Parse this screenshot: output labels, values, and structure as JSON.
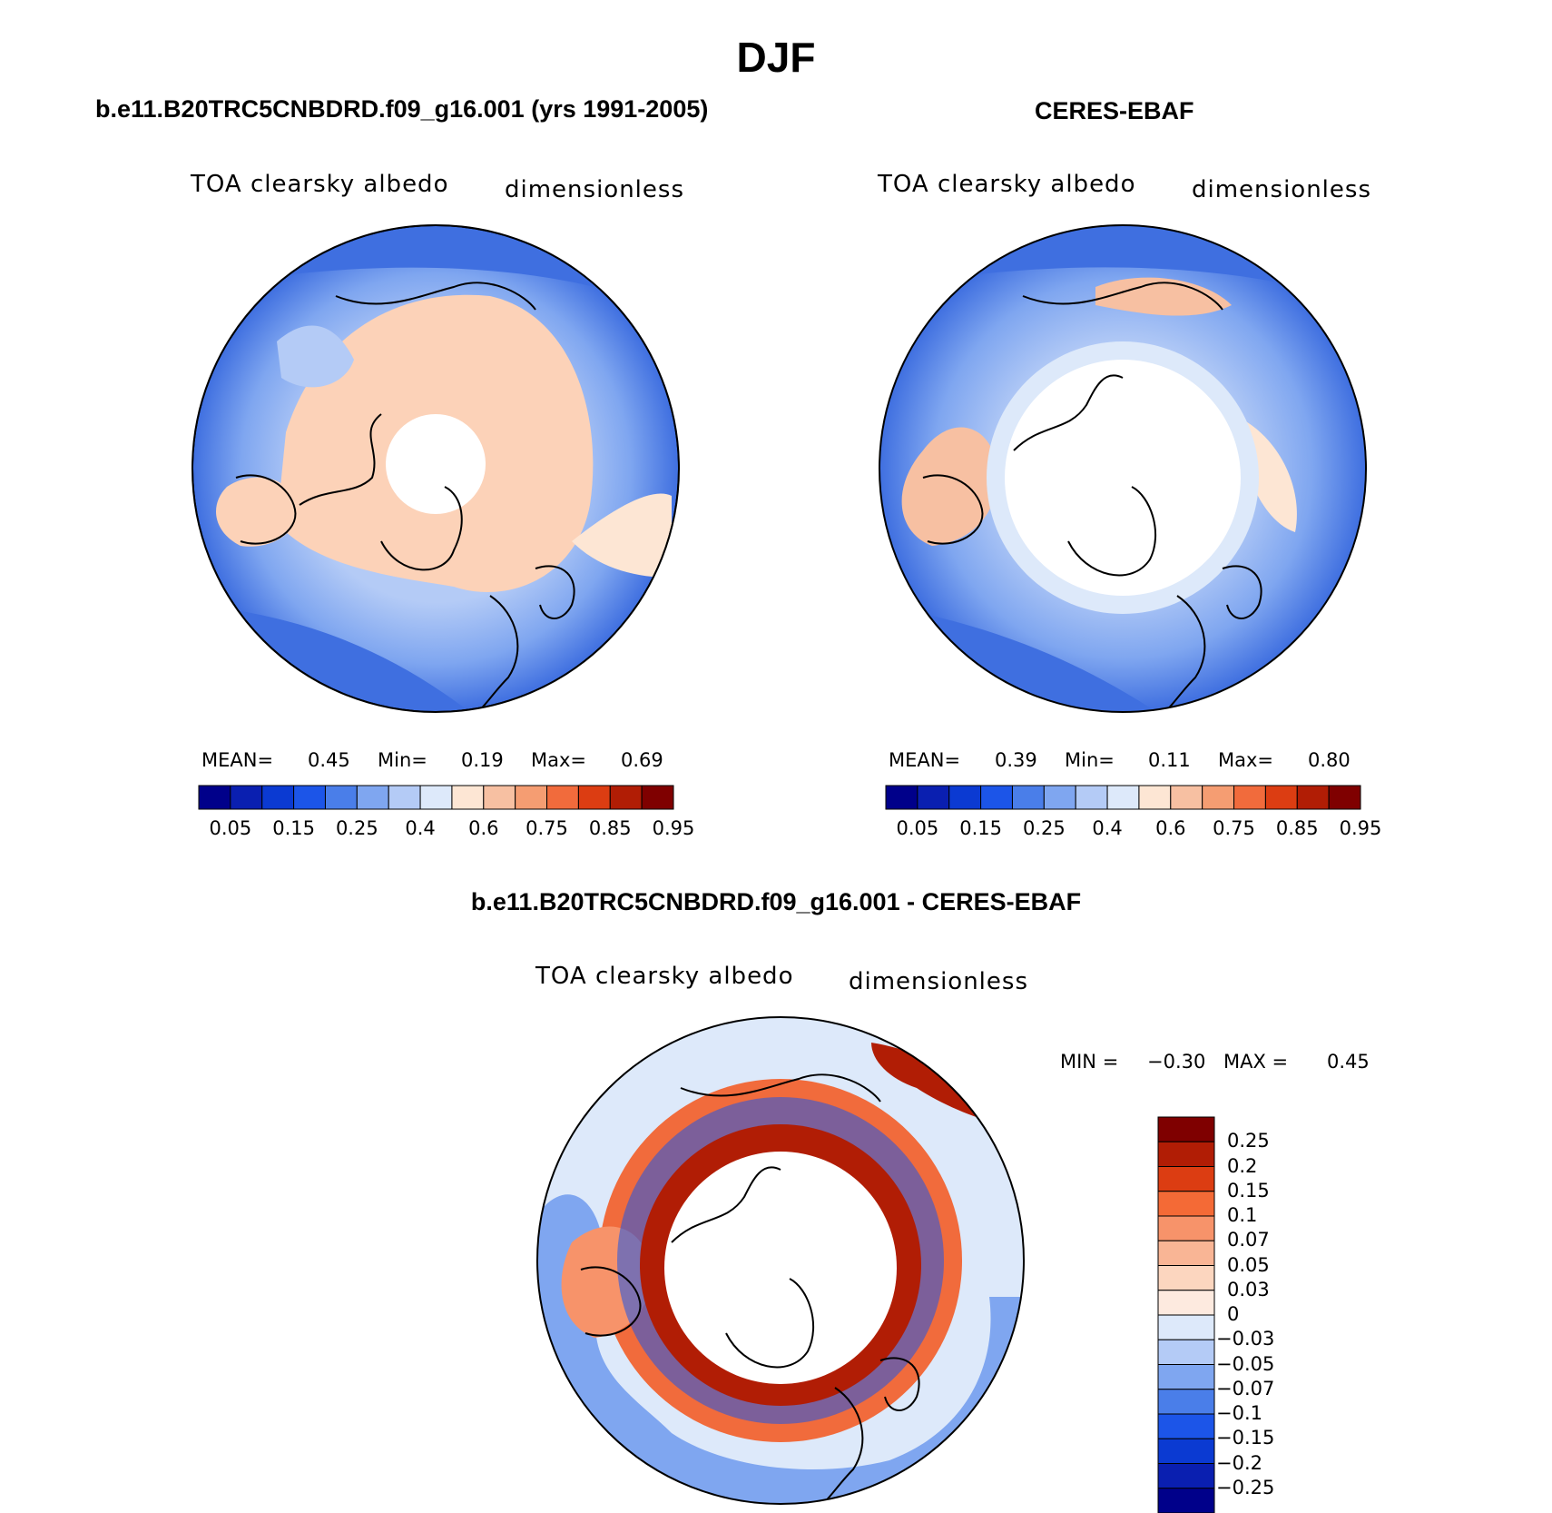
{
  "title": "DJF",
  "panels": [
    {
      "id": "model",
      "title": "b.e11.B20TRC5CNBDRD.f09_g16.001 (yrs 1991-2005)",
      "variable": "TOA clearsky albedo",
      "units": "dimensionless",
      "stats": {
        "mean_label": "MEAN=",
        "mean": "0.45",
        "min_label": "Min=",
        "min": "0.19",
        "max_label": "Max=",
        "max": "0.69"
      }
    },
    {
      "id": "obs",
      "title": "CERES-EBAF",
      "variable": "TOA clearsky albedo",
      "units": "dimensionless",
      "stats": {
        "mean_label": "MEAN=",
        "mean": "0.39",
        "min_label": "Min=",
        "min": "0.11",
        "max_label": "Max=",
        "max": "0.80"
      }
    },
    {
      "id": "diff",
      "title": "b.e11.B20TRC5CNBDRD.f09_g16.001 - CERES-EBAF",
      "variable": "TOA clearsky albedo",
      "units": "dimensionless",
      "stats": {
        "min_label": "MIN =",
        "min": "−0.30",
        "max_label": "MAX =",
        "max": "0.45"
      }
    }
  ],
  "colorbars": {
    "absolute": {
      "colors": [
        "#00008a",
        "#0a1fb0",
        "#0b3ad2",
        "#1c55e8",
        "#4a7ee9",
        "#7fa6f0",
        "#b4cbf6",
        "#dde9fa",
        "#fde6d4",
        "#f7c0a2",
        "#f59d72",
        "#f16b3c",
        "#dc3d12",
        "#b11d05",
        "#7f0000"
      ],
      "tick_labels": [
        "0.05",
        "0.15",
        "0.25",
        "0.4",
        "0.6",
        "0.75",
        "0.85",
        "0.95"
      ]
    },
    "difference": {
      "colors": [
        "#7f0000",
        "#b11d05",
        "#dc3d12",
        "#f46a36",
        "#f7936a",
        "#f9b595",
        "#fcd6bf",
        "#fdeadf",
        "#dde9fa",
        "#b4cbf6",
        "#7fa6f0",
        "#4a7ee9",
        "#1c55e8",
        "#0b3ad2",
        "#0a1fb0",
        "#00008a"
      ],
      "tick_labels": [
        "0.25",
        "0.2",
        "0.15",
        "0.1",
        "0.07",
        "0.05",
        "0.03",
        "0",
        "−0.03",
        "−0.05",
        "−0.07",
        "−0.1",
        "−0.15",
        "−0.2",
        "−0.25"
      ]
    }
  },
  "map_colors": {
    "ocean_low": "#3f6fe0",
    "ocean_mid": "#7fa6f0",
    "ocean_light": "#b4cbf6",
    "land_high": "#fcd2b8",
    "land_pale": "#fde6d4",
    "missing": "#ffffff",
    "diff_pos_strong": "#b11d05",
    "diff_pos": "#f16b3c",
    "diff_neg": "#1c55e8",
    "diff_neutral": "#dde9fa",
    "coast": "#000000"
  }
}
